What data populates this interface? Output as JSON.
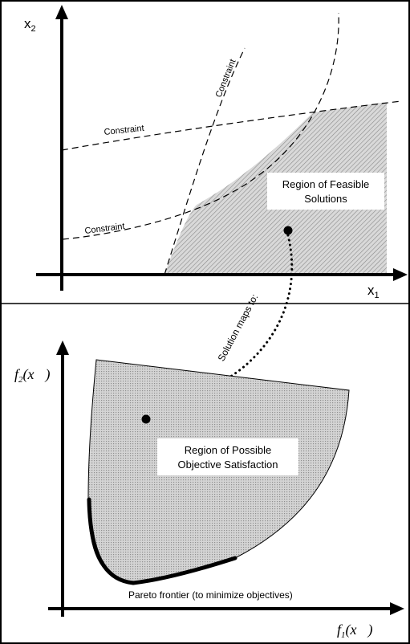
{
  "top": {
    "y_axis_label": "x",
    "y_axis_sub": "2",
    "x_axis_label": "x",
    "x_axis_sub": "1",
    "constraint_labels": [
      "Constraint",
      "Constraint",
      "Constraint"
    ],
    "region_label_lines": [
      "Region of Feasible",
      "Solutions"
    ]
  },
  "mapping_label": "Solution maps to:",
  "bottom": {
    "y_axis_f": "f",
    "y_axis_sub": "2",
    "y_axis_arg": "(x⃗)",
    "x_axis_f": "f",
    "x_axis_sub": "1",
    "x_axis_arg": "(x⃗)",
    "region_label_lines": [
      "Region of Possible",
      "Objective Satisfaction"
    ],
    "pareto_label": "Pareto frontier (to minimize objectives)"
  }
}
